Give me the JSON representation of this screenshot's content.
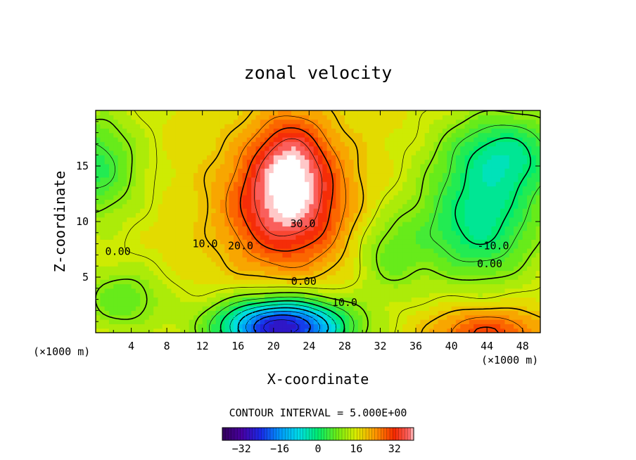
{
  "chart_data": {
    "type": "heatmap",
    "subtype": "filled-contour",
    "title": "zonal velocity",
    "xlabel": "X-coordinate",
    "ylabel": "Z-coordinate",
    "x_units_left": "(×1000 m)",
    "x_units_right": "(×1000 m)",
    "xlim": [
      0,
      50
    ],
    "ylim": [
      0,
      20
    ],
    "x_ticks": [
      4,
      8,
      12,
      16,
      20,
      24,
      28,
      32,
      36,
      40,
      44,
      48
    ],
    "y_ticks": [
      5,
      10,
      15
    ],
    "contour_interval_text": "CONTOUR INTERVAL = 5.000E+00",
    "contour_interval": 5,
    "contour_labels": [
      {
        "text": "0.00",
        "x": 2.5,
        "z": 7.0
      },
      {
        "text": "10.0",
        "x": 12.3,
        "z": 7.7
      },
      {
        "text": "20.0",
        "x": 16.3,
        "z": 7.5
      },
      {
        "text": "30.0",
        "x": 23.3,
        "z": 9.5
      },
      {
        "text": "0.00",
        "x": 23.4,
        "z": 4.3
      },
      {
        "text": "10.0",
        "x": 28.0,
        "z": 2.4
      },
      {
        "text": "-10.0",
        "x": 44.7,
        "z": 7.5
      },
      {
        "text": "0.00",
        "x": 44.3,
        "z": 5.9
      }
    ],
    "features": [
      {
        "name": "positive jet core",
        "x": 21.5,
        "z": 11.0,
        "max": 40
      },
      {
        "name": "negative core",
        "x": 21.0,
        "z": 0.8,
        "min": -40
      },
      {
        "name": "lower-right positive lobe",
        "x": 44.0,
        "z": 0.8,
        "max": 20
      },
      {
        "name": "upper-right negative lobe",
        "x": 43.0,
        "z": 9.5,
        "min": -15
      },
      {
        "name": "upper-left negative lobe",
        "x": 1.5,
        "z": 15.0,
        "min": -10
      }
    ],
    "colorbar": {
      "min": -40,
      "max": 40,
      "ticks": [
        -32,
        -16,
        0,
        16,
        32
      ],
      "tick_labels": [
        "−32",
        "−16",
        "0",
        "16",
        "32"
      ]
    }
  }
}
